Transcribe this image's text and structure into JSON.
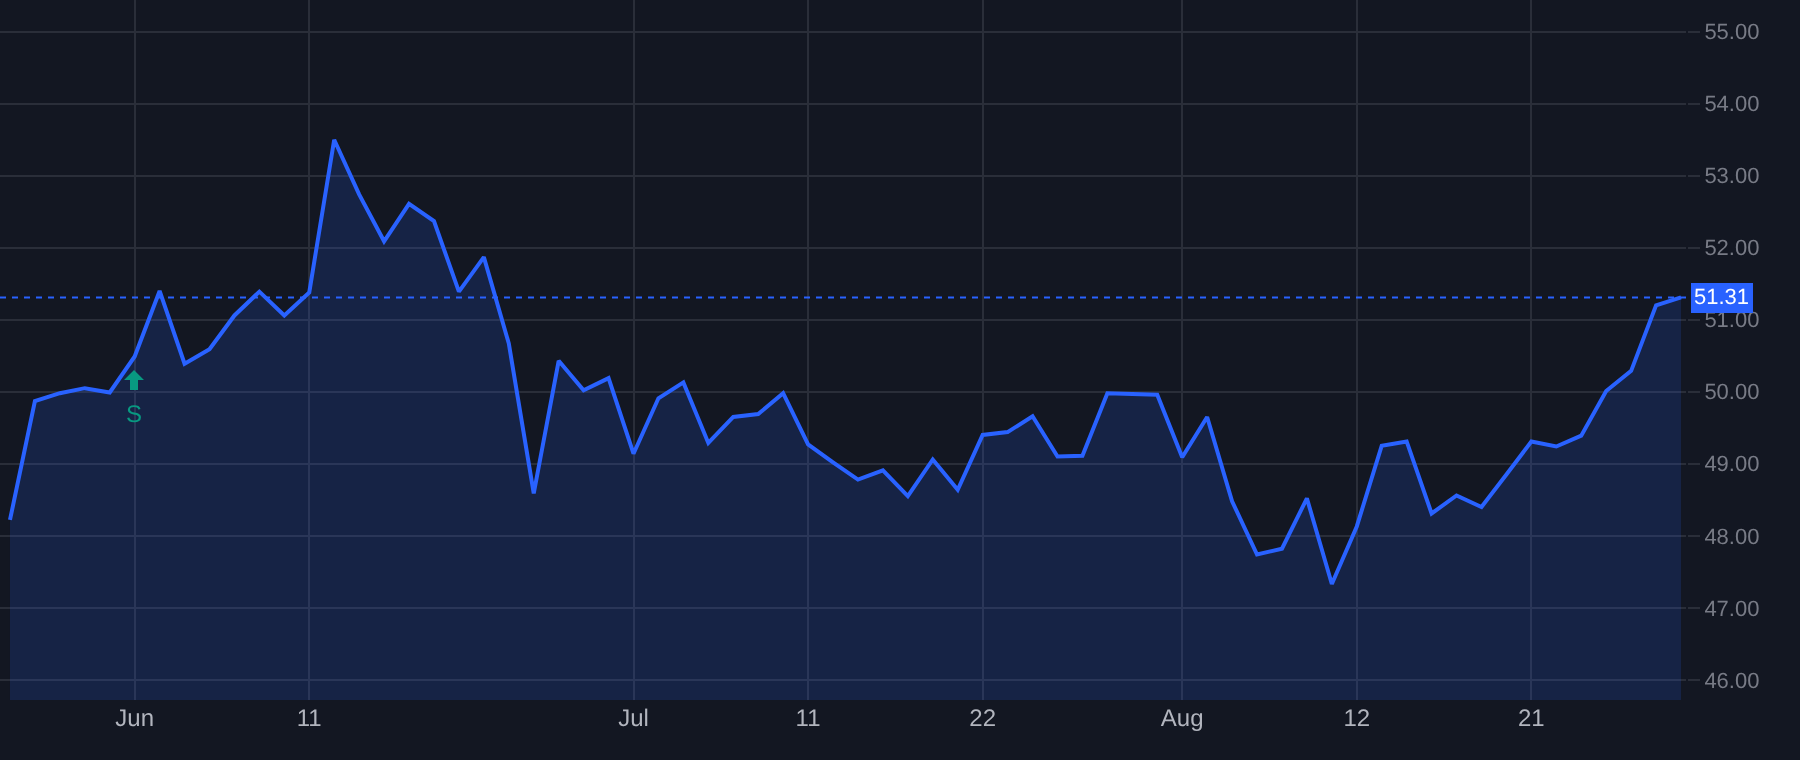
{
  "chart_data": {
    "type": "area",
    "categories": [
      null,
      null,
      null,
      null,
      null,
      "Jun",
      null,
      null,
      null,
      null,
      null,
      null,
      "11",
      null,
      null,
      null,
      null,
      null,
      null,
      null,
      null,
      null,
      null,
      null,
      null,
      "Jul",
      null,
      null,
      null,
      null,
      null,
      null,
      "11",
      null,
      null,
      null,
      null,
      null,
      null,
      "22",
      null,
      null,
      null,
      null,
      null,
      null,
      null,
      "Aug",
      null,
      null,
      null,
      null,
      null,
      null,
      "12",
      null,
      null,
      null,
      null,
      null,
      null,
      "21",
      null,
      null,
      null,
      null,
      null,
      null
    ],
    "series": [
      {
        "color": "#2962ff",
        "values": [
          48.22,
          49.87,
          49.98,
          50.05,
          49.99,
          50.49,
          51.4,
          50.39,
          50.59,
          51.06,
          51.39,
          51.06,
          51.38,
          53.5,
          52.74,
          52.09,
          52.61,
          52.37,
          51.39,
          51.87,
          50.67,
          48.59,
          50.43,
          50.02,
          50.19,
          49.14,
          49.91,
          50.13,
          49.29,
          49.65,
          49.69,
          49.98,
          49.27,
          49.02,
          48.78,
          48.91,
          48.55,
          49.06,
          48.64,
          49.4,
          49.44,
          49.66,
          49.1,
          49.11,
          49.98,
          49.97,
          49.96,
          49.09,
          49.65,
          48.48,
          47.74,
          47.82,
          48.52,
          47.33,
          48.13,
          49.25,
          49.31,
          48.31,
          48.56,
          48.4,
          48.85,
          49.31,
          49.24,
          49.39,
          50.01,
          50.29,
          51.2,
          51.31
        ]
      }
    ],
    "ylim": [
      45.72,
      55.44
    ],
    "yticks": [
      {
        "value": 46,
        "label": "46.00"
      },
      {
        "value": 47,
        "label": "47.00"
      },
      {
        "value": 48,
        "label": "48.00"
      },
      {
        "value": 49,
        "label": "49.00"
      },
      {
        "value": 50,
        "label": "50.00"
      },
      {
        "value": 51,
        "label": "51.00"
      },
      {
        "value": 52,
        "label": "52.00"
      },
      {
        "value": 53,
        "label": "53.00"
      },
      {
        "value": 54,
        "label": "54.00"
      },
      {
        "value": 55,
        "label": "55.00"
      }
    ],
    "ref_lines": [
      {
        "axis": "y",
        "value": 51.31,
        "label": "51.31",
        "color": "#2962ff",
        "line_style": "dotted"
      }
    ],
    "annotations": [
      {
        "text": "S",
        "x": "Jun",
        "y": 50.49
      }
    ],
    "grid": true,
    "marker": "none",
    "line_style": "solid"
  }
}
